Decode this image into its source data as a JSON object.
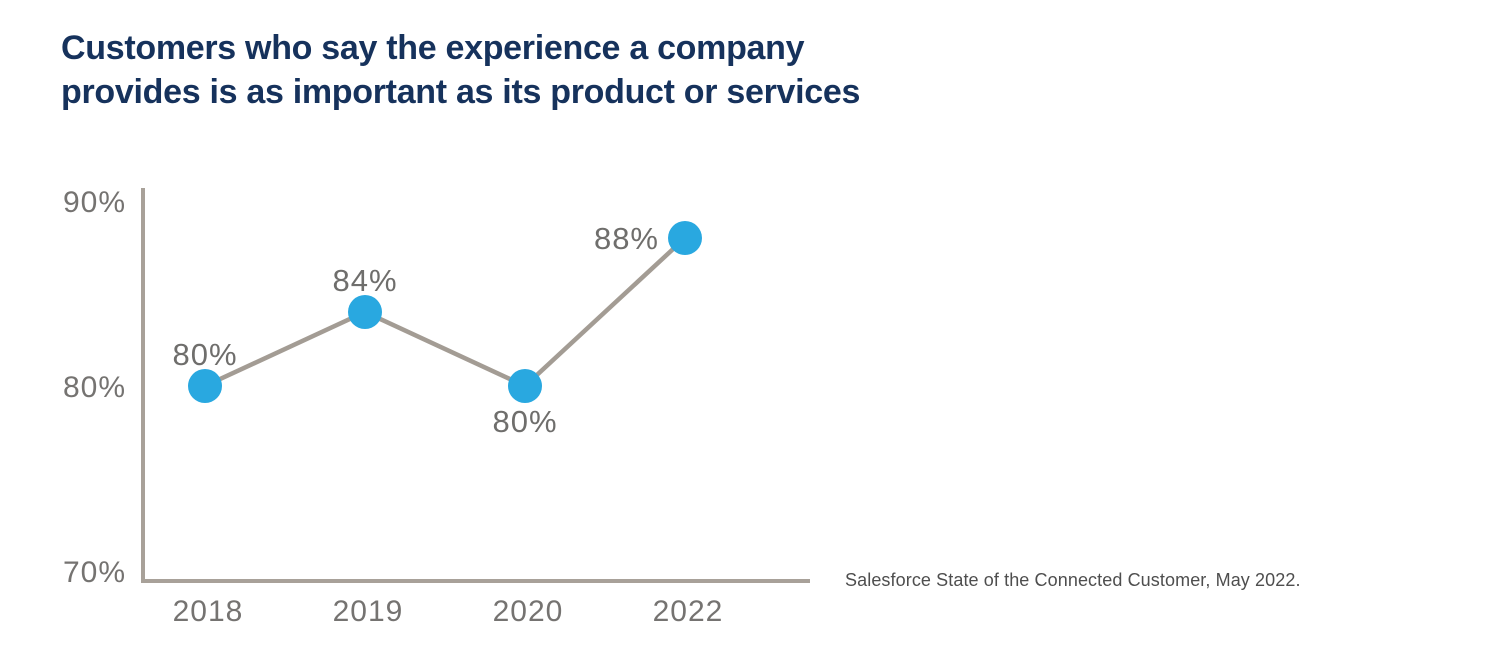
{
  "header": {
    "title_line1": "Customers who say the experience a company",
    "title_line2": "provides is as important as its product or services"
  },
  "source": "Salesforce State of the Connected Customer, May 2022.",
  "colors": {
    "title_navy": "#16325C",
    "point_blue": "#29A8E0",
    "line_taupe": "#A39C94",
    "axis_taupe": "#A8A199",
    "label_gray": "#757371",
    "source_gray": "#4E4E4E"
  },
  "chart_data": {
    "type": "line",
    "title": "Customers who say the experience a company provides is as important as its product or services",
    "categories": [
      "2018",
      "2019",
      "2020",
      "2022"
    ],
    "values": [
      80,
      84,
      80,
      88
    ],
    "point_labels": [
      "80%",
      "84%",
      "80%",
      "88%"
    ],
    "label_positions": [
      "top",
      "top",
      "bottom",
      "left"
    ],
    "yticks": [
      {
        "value": 90,
        "label": "90%"
      },
      {
        "value": 80,
        "label": "80%"
      },
      {
        "value": 70,
        "label": "70%"
      }
    ],
    "ylim": [
      70,
      90
    ],
    "xlabel": "",
    "ylabel": "",
    "grid": false,
    "legend": false,
    "annotation": "Salesforce State of the Connected Customer, May 2022."
  }
}
